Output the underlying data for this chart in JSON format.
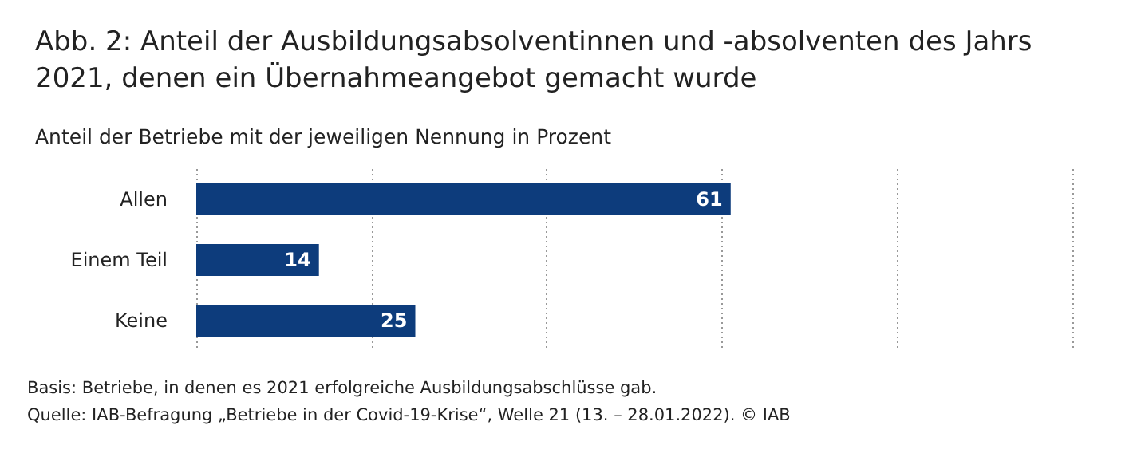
{
  "chart_data": {
    "type": "bar",
    "orientation": "horizontal",
    "title": "Abb. 2: Anteil der Ausbildungsabsolventinnen und -absolventen des Jahrs 2021, denen ein Übernahmeangebot gemacht wurde",
    "subtitle": "Anteil der Betriebe mit der jeweiligen Nennung in Prozent",
    "categories": [
      "Allen",
      "Einem Teil",
      "Keine"
    ],
    "values": [
      61,
      14,
      25
    ],
    "color": "#0d3c7c",
    "xlim": [
      0,
      100
    ],
    "xticks": [
      {
        "value": 0,
        "label": null
      },
      {
        "value": 20,
        "label": null
      },
      {
        "value": 40,
        "label": null
      },
      {
        "value": 60,
        "label": null
      },
      {
        "value": 80,
        "label": null
      },
      {
        "value": 100,
        "label": null
      }
    ],
    "grid": "x",
    "tick_labels": "y",
    "data_labels": true,
    "annotations": [
      "Basis: Betriebe, in denen es 2021 erfolgreiche Ausbildungsabschlüsse gab.",
      "Quelle: IAB-Befragung „Betriebe in der Covid-19-Krise“, Welle 21 (13. – 28.01.2022). © IAB"
    ]
  }
}
